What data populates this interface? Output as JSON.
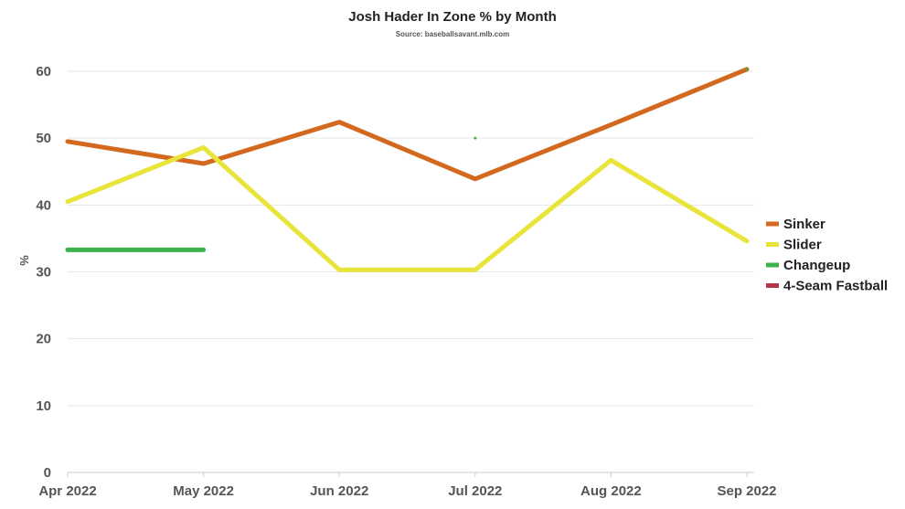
{
  "chart_data": {
    "type": "line",
    "title": "Josh Hader In Zone % by Month",
    "subtitle": "Source: baseballsavant.mlb.com",
    "xlabel": "",
    "ylabel": "%",
    "categories": [
      "Apr 2022",
      "May 2022",
      "Jun 2022",
      "Jul 2022",
      "Aug 2022",
      "Sep 2022"
    ],
    "yticks": [
      "0",
      "10",
      "20",
      "30",
      "40",
      "50",
      "60"
    ],
    "ylim": [
      0,
      60
    ],
    "grid": true,
    "legend": "right",
    "series": [
      {
        "name": "Sinker",
        "color": "#d2691e",
        "values": [
          49.5,
          46.2,
          52.4,
          43.9,
          52.0,
          60.3
        ]
      },
      {
        "name": "Slider",
        "color": "#e8e43a",
        "values": [
          40.5,
          48.6,
          30.3,
          30.3,
          46.7,
          34.6
        ]
      },
      {
        "name": "Changeup",
        "color": "#3cb34a",
        "values": [
          33.3,
          33.3,
          null,
          50.0,
          null,
          60.3
        ]
      },
      {
        "name": "4-Seam Fastball",
        "color": "#b5344a",
        "values": [
          null,
          null,
          null,
          null,
          null,
          null
        ]
      }
    ]
  }
}
